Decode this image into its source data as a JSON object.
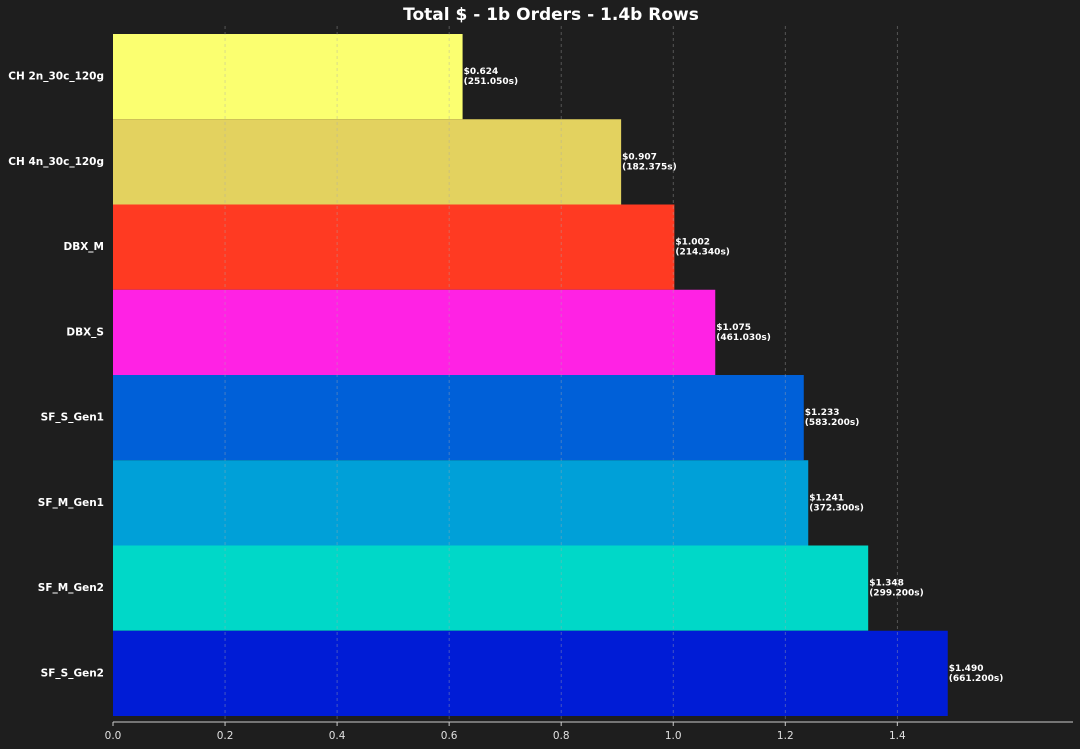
{
  "chart_data": {
    "type": "barh",
    "title": "Total $ - 1b Orders - 1.4b Rows",
    "categories": [
      "CH 2n_30c_120g",
      "CH 4n_30c_120g",
      "DBX_M",
      "DBX_S",
      "SF_S_Gen1",
      "SF_M_Gen1",
      "SF_M_Gen2",
      "SF_S_Gen2"
    ],
    "values": [
      0.624,
      0.907,
      1.002,
      1.075,
      1.233,
      1.241,
      1.348,
      1.49
    ],
    "value_labels": [
      "$0.624",
      "$0.907",
      "$1.002",
      "$1.075",
      "$1.233",
      "$1.241",
      "$1.348",
      "$1.490"
    ],
    "time_labels": [
      "(251.050s)",
      "(182.375s)",
      "(214.340s)",
      "(461.030s)",
      "(583.200s)",
      "(372.300s)",
      "(299.200s)",
      "(661.200s)"
    ],
    "colors": [
      "#fbff70",
      "#e3d25f",
      "#ff3a22",
      "#ff22e4",
      "#0060d8",
      "#00a0d8",
      "#00d8c8",
      "#001cd6"
    ],
    "xlim": [
      0,
      1.71
    ],
    "xticks": [
      {
        "value": 0,
        "label": "0.0"
      },
      0.2,
      0.4,
      0.6,
      0.8,
      {
        "value": 1,
        "label": "1.0"
      },
      1.2,
      1.4
    ],
    "grid": true
  }
}
